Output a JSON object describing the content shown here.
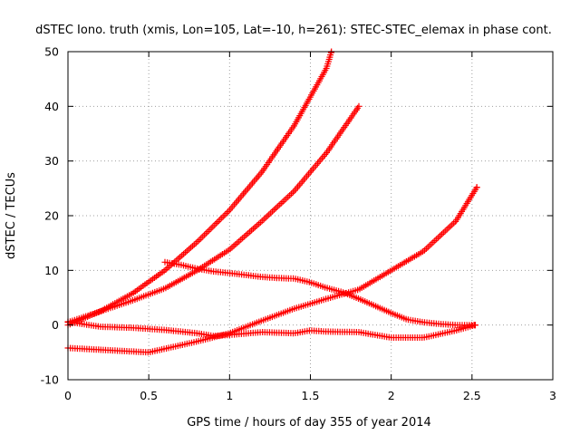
{
  "chart_data": {
    "type": "scatter",
    "title": "dSTEC Iono. truth (xmis, Lon=105, Lat=-10, h=261): STEC-STEC_elemax in phase cont.",
    "xlabel": "GPS time / hours of day 355 of year 2014",
    "ylabel": "dSTEC  / TECUs",
    "xlim": [
      0,
      3
    ],
    "ylim": [
      -10,
      50
    ],
    "x_ticks": [
      "0",
      "0.5",
      "1",
      "1.5",
      "2",
      "2.5",
      "3"
    ],
    "y_ticks": [
      "-10",
      "0",
      "10",
      "20",
      "30",
      "40",
      "50"
    ],
    "grid": true,
    "marker": "plus",
    "colors": {
      "series": "#ff0000",
      "grid": "#a0a0a0",
      "frame": "#000000"
    },
    "series": [
      {
        "x": [
          0.0,
          0.2,
          0.4,
          0.6,
          0.8,
          1.0,
          1.2,
          1.4,
          1.6,
          1.63
        ],
        "y": [
          0.0,
          2.5,
          5.8,
          10.0,
          15.2,
          21.0,
          28.0,
          36.5,
          47.0,
          50.0
        ]
      },
      {
        "x": [
          0.0,
          0.2,
          0.4,
          0.6,
          0.8,
          1.0,
          1.2,
          1.4,
          1.6,
          1.8
        ],
        "y": [
          0.5,
          2.5,
          4.5,
          6.7,
          10.0,
          13.8,
          19.0,
          24.5,
          31.5,
          40.0
        ]
      },
      {
        "x": [
          0.0,
          0.5,
          0.8,
          1.0,
          1.2,
          1.4,
          1.6,
          1.8,
          2.0,
          2.2,
          2.4,
          2.53
        ],
        "y": [
          -4.2,
          -5.0,
          -3.0,
          -1.5,
          0.8,
          3.0,
          4.8,
          6.5,
          10.0,
          13.5,
          19.0,
          25.2
        ]
      },
      {
        "x": [
          0.0,
          0.2,
          0.4,
          0.6,
          0.8,
          0.9,
          1.0,
          1.2,
          1.4,
          1.5,
          1.6,
          1.8,
          2.0,
          2.2,
          2.4,
          2.52
        ],
        "y": [
          0.6,
          -0.3,
          -0.5,
          -0.9,
          -1.5,
          -2.0,
          -1.8,
          -1.3,
          -1.5,
          -1.0,
          -1.2,
          -1.3,
          -2.3,
          -2.3,
          -1.0,
          0.0
        ]
      },
      {
        "x": [
          0.6,
          0.7,
          0.8,
          0.9,
          1.0,
          1.2,
          1.3,
          1.4,
          1.5,
          1.6,
          1.7,
          1.8,
          1.9,
          2.0,
          2.1,
          2.2,
          2.3,
          2.4,
          2.52
        ],
        "y": [
          11.5,
          11.0,
          10.3,
          9.8,
          9.5,
          8.8,
          8.6,
          8.5,
          7.8,
          6.8,
          6.0,
          4.8,
          3.5,
          2.2,
          1.0,
          0.5,
          0.2,
          0.0,
          0.0
        ]
      }
    ]
  }
}
